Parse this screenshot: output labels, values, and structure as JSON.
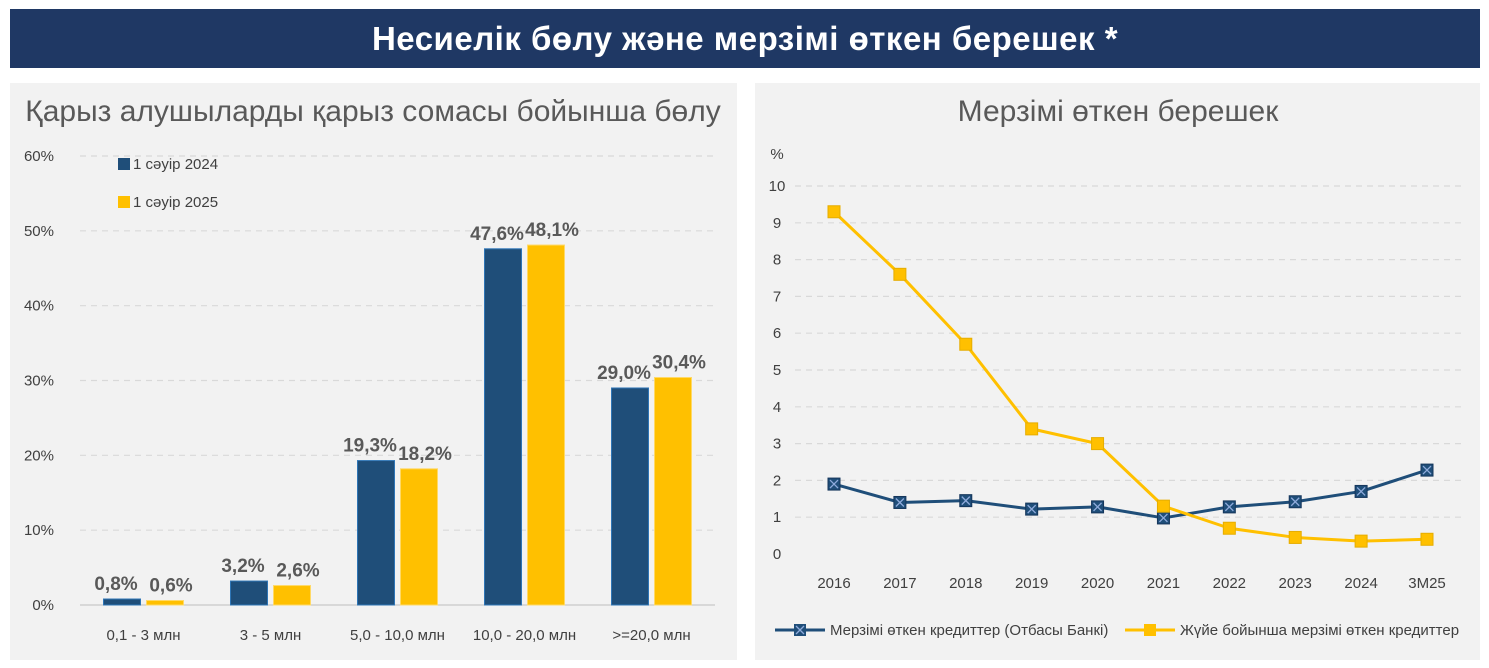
{
  "header": {
    "title": "Несиелік бөлу және мерзімі өткен берешек *"
  },
  "chart_data": [
    {
      "type": "bar",
      "title": "Қарыз алушыларды қарыз сомасы бойынша бөлу",
      "categories": [
        "0,1 - 3 млн",
        "3 - 5 млн",
        "5,0 - 10,0 млн",
        "10,0 - 20,0 млн",
        ">=20,0 млн"
      ],
      "series": [
        {
          "name": "1 сәуір 2024",
          "values": [
            0.8,
            3.2,
            19.3,
            47.6,
            29.0
          ],
          "labels": [
            "0,8%",
            "3,2%",
            "19,3%",
            "47,6%",
            "29,0%"
          ],
          "color": "#1f4e79"
        },
        {
          "name": "1 сәуір 2025",
          "values": [
            0.6,
            2.6,
            18.2,
            48.1,
            30.4
          ],
          "labels": [
            "0,6%",
            "2,6%",
            "18,2%",
            "48,1%",
            "30,4%"
          ],
          "color": "#ffc000"
        }
      ],
      "ylim": [
        0,
        60
      ],
      "yticks": [
        "0%",
        "10%",
        "20%",
        "30%",
        "40%",
        "50%",
        "60%"
      ],
      "grid": true,
      "legend": "top-left"
    },
    {
      "type": "line",
      "title": "Мерзімі өткен берешек",
      "ylabel": "%",
      "x": [
        "2016",
        "2017",
        "2018",
        "2019",
        "2020",
        "2021",
        "2022",
        "2023",
        "2024",
        "3M25"
      ],
      "series": [
        {
          "name": "Мерзімі өткен кредиттер (Отбасы Банкі)",
          "values": [
            1.9,
            1.4,
            1.45,
            1.22,
            1.28,
            0.98,
            1.28,
            1.42,
            1.7,
            2.28
          ],
          "color": "#1f4e79"
        },
        {
          "name": "Жүйе бойынша мерзімі өткен кредиттер",
          "values": [
            9.3,
            7.6,
            5.7,
            3.4,
            3.0,
            1.3,
            0.7,
            0.45,
            0.35,
            0.4
          ],
          "color": "#ffc000"
        }
      ],
      "ylim": [
        0,
        10
      ],
      "yticks": [
        "0",
        "1",
        "2",
        "3",
        "4",
        "5",
        "6",
        "7",
        "8",
        "9",
        "10"
      ],
      "grid": true,
      "legend": "bottom"
    }
  ]
}
